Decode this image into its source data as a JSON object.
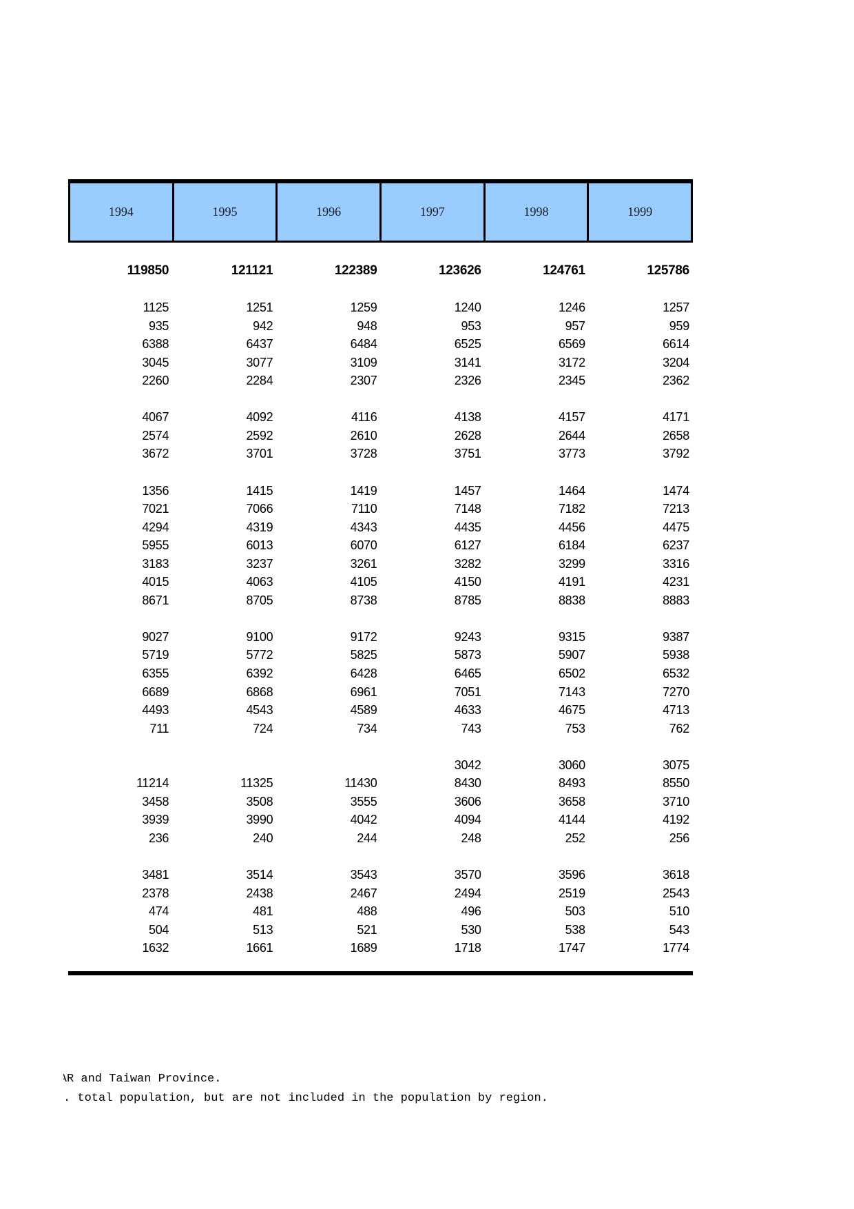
{
  "page": {
    "kind": "statistical-yearbook-table-page",
    "background_color": "#FFFFFF",
    "rule_color": "#000000"
  },
  "table": {
    "header_fill_color": "#99CCFF",
    "years": [
      "1994",
      "1995",
      "1996",
      "1997",
      "1998",
      "1999"
    ],
    "rows": [
      {
        "kind": "total",
        "cells": [
          "119850",
          "121121",
          "122389",
          "123626",
          "124761",
          "125786"
        ]
      },
      {
        "kind": "spacer"
      },
      {
        "kind": "data",
        "cells": [
          "1125",
          "1251",
          "1259",
          "1240",
          "1246",
          "1257"
        ]
      },
      {
        "kind": "data",
        "cells": [
          "935",
          "942",
          "948",
          "953",
          "957",
          "959"
        ]
      },
      {
        "kind": "data",
        "cells": [
          "6388",
          "6437",
          "6484",
          "6525",
          "6569",
          "6614"
        ]
      },
      {
        "kind": "data",
        "cells": [
          "3045",
          "3077",
          "3109",
          "3141",
          "3172",
          "3204"
        ]
      },
      {
        "kind": "data",
        "cells": [
          "2260",
          "2284",
          "2307",
          "2326",
          "2345",
          "2362"
        ]
      },
      {
        "kind": "spacer"
      },
      {
        "kind": "data",
        "cells": [
          "4067",
          "4092",
          "4116",
          "4138",
          "4157",
          "4171"
        ]
      },
      {
        "kind": "data",
        "cells": [
          "2574",
          "2592",
          "2610",
          "2628",
          "2644",
          "2658"
        ]
      },
      {
        "kind": "data",
        "cells": [
          "3672",
          "3701",
          "3728",
          "3751",
          "3773",
          "3792"
        ]
      },
      {
        "kind": "spacer"
      },
      {
        "kind": "data",
        "cells": [
          "1356",
          "1415",
          "1419",
          "1457",
          "1464",
          "1474"
        ]
      },
      {
        "kind": "data",
        "cells": [
          "7021",
          "7066",
          "7110",
          "7148",
          "7182",
          "7213"
        ]
      },
      {
        "kind": "data",
        "cells": [
          "4294",
          "4319",
          "4343",
          "4435",
          "4456",
          "4475"
        ]
      },
      {
        "kind": "data",
        "cells": [
          "5955",
          "6013",
          "6070",
          "6127",
          "6184",
          "6237"
        ]
      },
      {
        "kind": "data",
        "cells": [
          "3183",
          "3237",
          "3261",
          "3282",
          "3299",
          "3316"
        ]
      },
      {
        "kind": "data",
        "cells": [
          "4015",
          "4063",
          "4105",
          "4150",
          "4191",
          "4231"
        ]
      },
      {
        "kind": "data",
        "cells": [
          "8671",
          "8705",
          "8738",
          "8785",
          "8838",
          "8883"
        ]
      },
      {
        "kind": "spacer"
      },
      {
        "kind": "data",
        "cells": [
          "9027",
          "9100",
          "9172",
          "9243",
          "9315",
          "9387"
        ]
      },
      {
        "kind": "data",
        "cells": [
          "5719",
          "5772",
          "5825",
          "5873",
          "5907",
          "5938"
        ]
      },
      {
        "kind": "data",
        "cells": [
          "6355",
          "6392",
          "6428",
          "6465",
          "6502",
          "6532"
        ]
      },
      {
        "kind": "data",
        "cells": [
          "6689",
          "6868",
          "6961",
          "7051",
          "7143",
          "7270"
        ]
      },
      {
        "kind": "data",
        "cells": [
          "4493",
          "4543",
          "4589",
          "4633",
          "4675",
          "4713"
        ]
      },
      {
        "kind": "data",
        "cells": [
          "711",
          "724",
          "734",
          "743",
          "753",
          "762"
        ]
      },
      {
        "kind": "spacer"
      },
      {
        "kind": "data",
        "cells": [
          "",
          "",
          "",
          "3042",
          "3060",
          "3075"
        ]
      },
      {
        "kind": "data",
        "cells": [
          "11214",
          "11325",
          "11430",
          "8430",
          "8493",
          "8550"
        ]
      },
      {
        "kind": "data",
        "cells": [
          "3458",
          "3508",
          "3555",
          "3606",
          "3658",
          "3710"
        ]
      },
      {
        "kind": "data",
        "cells": [
          "3939",
          "3990",
          "4042",
          "4094",
          "4144",
          "4192"
        ]
      },
      {
        "kind": "data",
        "cells": [
          "236",
          "240",
          "244",
          "248",
          "252",
          "256"
        ]
      },
      {
        "kind": "spacer"
      },
      {
        "kind": "data",
        "cells": [
          "3481",
          "3514",
          "3543",
          "3570",
          "3596",
          "3618"
        ]
      },
      {
        "kind": "data",
        "cells": [
          "2378",
          "2438",
          "2467",
          "2494",
          "2519",
          "2543"
        ]
      },
      {
        "kind": "data",
        "cells": [
          "474",
          "481",
          "488",
          "496",
          "503",
          "510"
        ]
      },
      {
        "kind": "data",
        "cells": [
          "504",
          "513",
          "521",
          "530",
          "538",
          "543"
        ]
      },
      {
        "kind": "data",
        "cells": [
          "1632",
          "1661",
          "1689",
          "1718",
          "1747",
          "1774"
        ]
      }
    ]
  },
  "footnotes": {
    "line1_clipped_prefix": "A",
    "line1": "R and Taiwan Province.",
    "line2": ". total population, but are not included in the population by region."
  }
}
